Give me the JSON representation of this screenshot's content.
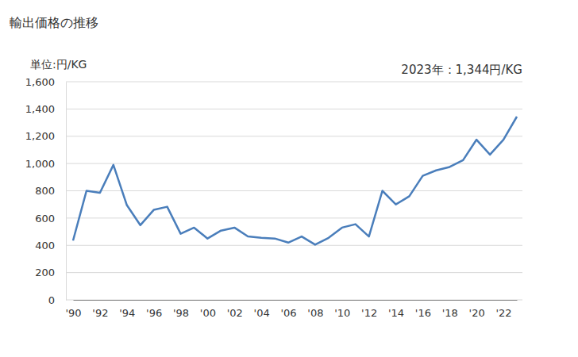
{
  "chart_data": {
    "type": "line",
    "title": "輸出価格の推移",
    "y_unit_label": "単位:円/KG",
    "annotation": "2023年：1,344円/KG",
    "categories": [
      "'90",
      null,
      "'92",
      null,
      "'94",
      null,
      "'96",
      null,
      "'98",
      null,
      "'00",
      null,
      "'02",
      null,
      "'04",
      null,
      "'06",
      null,
      "'08",
      null,
      "'10",
      null,
      "'12",
      null,
      "'14",
      null,
      "'16",
      null,
      "'18",
      null,
      "'20",
      null,
      "'22",
      null
    ],
    "values": [
      435,
      800,
      785,
      990,
      695,
      548,
      660,
      683,
      485,
      530,
      450,
      508,
      530,
      465,
      455,
      450,
      420,
      465,
      405,
      455,
      530,
      555,
      465,
      800,
      700,
      760,
      910,
      950,
      975,
      1025,
      1175,
      1065,
      1175,
      1344
    ],
    "color": "#4a7ebb",
    "ylim": [
      0,
      1600
    ],
    "yticks": [
      0,
      200,
      400,
      600,
      800,
      {
        "value": 1000,
        "label": "1,000"
      },
      {
        "value": 1200,
        "label": "1,200"
      },
      {
        "value": 1400,
        "label": "1,400"
      },
      {
        "value": 1600,
        "label": "1,600"
      }
    ],
    "grid": true
  }
}
